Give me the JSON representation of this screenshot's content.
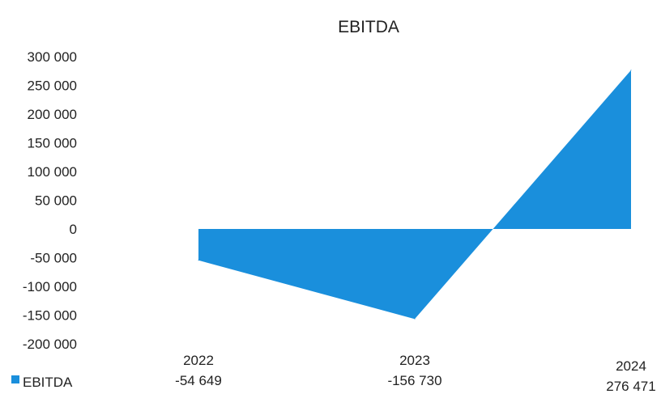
{
  "chart_data": {
    "type": "area",
    "title": "EBITDA",
    "categories": [
      "2022",
      "2023",
      "2024"
    ],
    "series": [
      {
        "name": "EBITDA",
        "values": [
          -54649,
          -156730,
          276471
        ]
      }
    ],
    "data_labels": [
      "-54 649",
      "-156 730",
      "276 471"
    ],
    "y_ticks": [
      300000,
      250000,
      200000,
      150000,
      100000,
      50000,
      0,
      -50000,
      -100000,
      -150000,
      -200000
    ],
    "y_tick_labels": [
      "300 000",
      "250 000",
      "200 000",
      "150 000",
      "100 000",
      "50 000",
      "0",
      "-50 000",
      "-100 000",
      "-150 000",
      "-200 000"
    ],
    "ylim": [
      -200000,
      300000
    ],
    "grid": false,
    "legend": "bottom-left",
    "colors": {
      "series": "#1a8fdc",
      "text": "#222222"
    }
  }
}
